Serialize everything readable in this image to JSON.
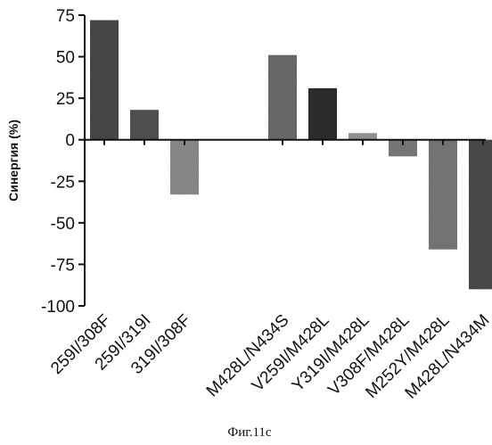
{
  "chart_data": {
    "type": "bar",
    "categories": [
      "259I/308F",
      "259I/319I",
      "319I/308F",
      "M428L/N434S",
      "V259I/M428L",
      "Y319I/M428L",
      "V308F/M428L",
      "M252Y/M428L",
      "M428L/N434M"
    ],
    "values": [
      72,
      18,
      -33,
      51,
      31,
      4,
      -10,
      -66,
      -90
    ],
    "group_gap_after_index": 2,
    "ylabel": "Синергия (%)",
    "ylim": [
      -100,
      75
    ],
    "yticks": [
      75,
      50,
      25,
      0,
      -25,
      -50,
      -75,
      -100
    ],
    "ytick_labels": [
      "75",
      "50",
      "25",
      "0",
      "-25",
      "-50",
      "-75",
      "-100"
    ],
    "grid": false,
    "bar_colors": [
      "#4a4a4a",
      "#555555",
      "#8f8f8f",
      "#6e6e6e",
      "#2f2f2f",
      "#9a9a9a",
      "#7d7d7d",
      "#7a7a7a",
      "#4d4d4d"
    ]
  },
  "caption": "Фиг.11c"
}
